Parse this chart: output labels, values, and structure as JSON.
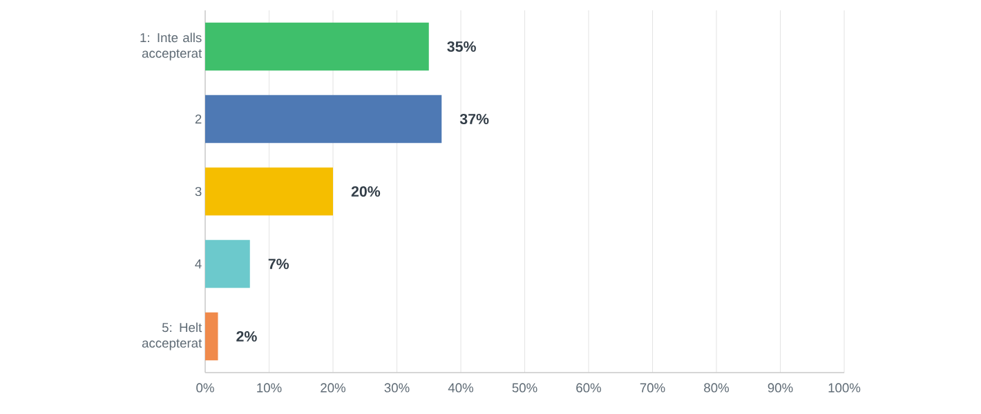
{
  "chart_data": {
    "type": "bar",
    "orientation": "horizontal",
    "categories": [
      "1: Inte alls accepterat",
      "2",
      "3",
      "4",
      "5: Helt accepterat"
    ],
    "values": [
      35,
      37,
      20,
      7,
      2
    ],
    "colors": [
      "#3fbf6b",
      "#4e79b4",
      "#f5be00",
      "#6cc9cc",
      "#f08a4b"
    ],
    "value_labels": [
      "35%",
      "37%",
      "20%",
      "7%",
      "2%"
    ],
    "xlim": [
      0,
      100
    ],
    "xticks": [
      {
        "value": 0,
        "label": "0%"
      },
      {
        "value": 10,
        "label": "10%"
      },
      {
        "value": 20,
        "label": "20%"
      },
      {
        "value": 30,
        "label": "30%"
      },
      {
        "value": 40,
        "label": "40%"
      },
      {
        "value": 50,
        "label": "50%"
      },
      {
        "value": 60,
        "label": "60%"
      },
      {
        "value": 70,
        "label": "70%"
      },
      {
        "value": 80,
        "label": "80%"
      },
      {
        "value": 90,
        "label": "90%"
      },
      {
        "value": 100,
        "label": "100%"
      }
    ],
    "grid": "x"
  }
}
